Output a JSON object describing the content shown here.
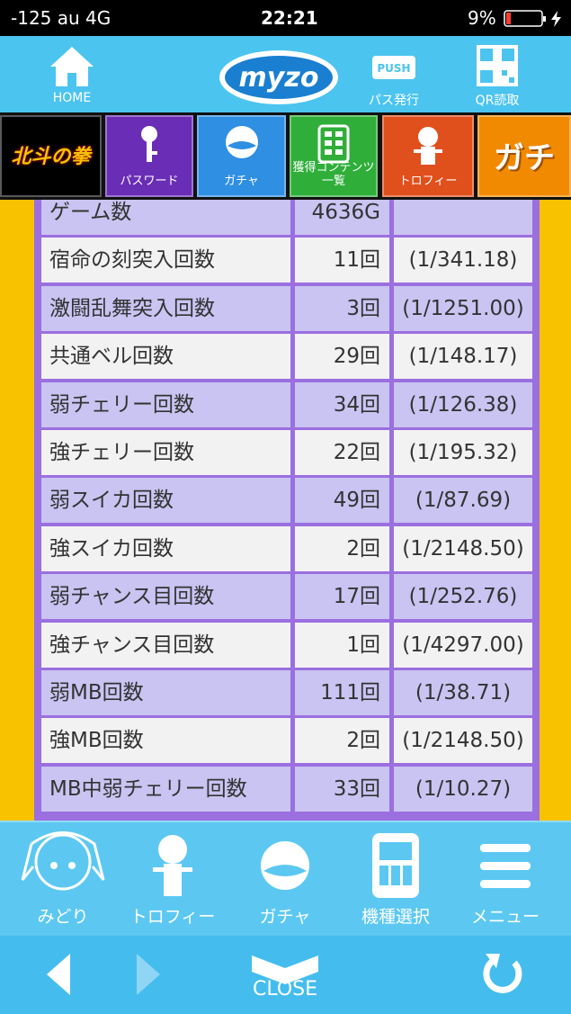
{
  "status_bar": {
    "carrier": "-125 au 4G",
    "time": "22:21",
    "battery": "9%"
  },
  "header": {
    "home": "HOME",
    "logo": "myzo",
    "push_icon": "PUSH",
    "pass": "パス発行",
    "qr": "QR読取"
  },
  "tabs": [
    "北斗の拳",
    "パスワード",
    "ガチャ",
    "獲得コンテンツ一覧",
    "トロフィー",
    "ガチ"
  ],
  "table": {
    "rows": [
      [
        "ゲーム数",
        "4636G"
      ],
      [
        "宿命の刻突入回数",
        "11回",
        "(1/341.18)"
      ],
      [
        "激闘乱舞突入回数",
        "3回",
        "(1/1251.00)"
      ],
      [
        "共通ベル回数",
        "29回",
        "(1/148.17)"
      ],
      [
        "弱チェリー回数",
        "34回",
        "(1/126.38)"
      ],
      [
        "強チェリー回数",
        "22回",
        "(1/195.32)"
      ],
      [
        "弱スイカ回数",
        "49回",
        "(1/87.69)"
      ],
      [
        "強スイカ回数",
        "2回",
        "(1/2148.50)"
      ],
      [
        "弱チャンス目回数",
        "17回",
        "(1/252.76)"
      ],
      [
        "強チャンス目回数",
        "1回",
        "(1/4297.00)"
      ],
      [
        "弱MB回数",
        "111回",
        "(1/38.71)"
      ],
      [
        "強MB回数",
        "2回",
        "(1/2148.50)"
      ],
      [
        "MB中弱チェリー回数",
        "33回",
        "(1/10.27)"
      ]
    ]
  },
  "bottom_nav": [
    "みどり",
    "トロフィー",
    "ガチャ",
    "機種選択",
    "メニュー"
  ],
  "footer": {
    "close": "CLOSE"
  }
}
